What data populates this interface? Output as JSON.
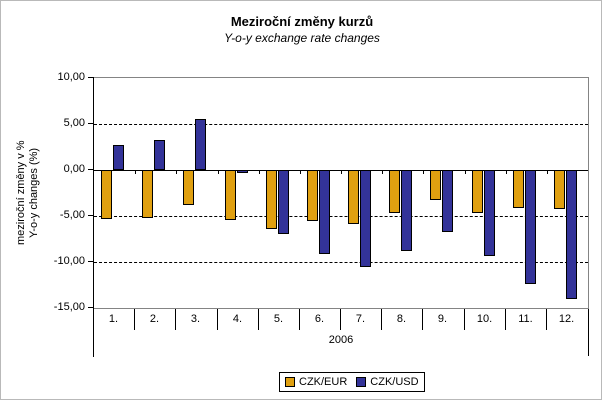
{
  "chart_data": {
    "type": "bar",
    "title": "Meziroční změny kurzů",
    "subtitle": "Y-o-y exchange rate changes",
    "ylabel_line1": "meziroční změny v %",
    "ylabel_line2": "Y-o-y changes (%)",
    "year_label": "2006",
    "categories": [
      "1.",
      "2.",
      "3.",
      "4.",
      "5.",
      "6.",
      "7.",
      "8.",
      "9.",
      "10.",
      "11.",
      "12."
    ],
    "series": [
      {
        "name": "CZK/EUR",
        "color": "#E0A010",
        "values": [
          -5.3,
          -5.2,
          -3.8,
          -5.4,
          -6.4,
          -5.5,
          -5.9,
          -4.7,
          -3.3,
          -4.7,
          -4.1,
          -4.2
        ]
      },
      {
        "name": "CZK/USD",
        "color": "#333399",
        "values": [
          2.7,
          3.3,
          5.5,
          -0.3,
          -7.0,
          -9.1,
          -10.5,
          -8.8,
          -6.7,
          -9.3,
          -12.4,
          -14.0
        ]
      }
    ],
    "ylim": [
      -15,
      10
    ],
    "ytick_step": 5,
    "ytick_labels": [
      "10,00",
      "5,00",
      "0,00",
      "-5,00",
      "-10,00",
      "-15,00"
    ],
    "ytick_values": [
      10,
      5,
      0,
      -5,
      -10,
      -15
    ],
    "grid": "horizontal-dashed",
    "legend_position": "bottom-center",
    "plot_border_color": "#848484",
    "axis_color": "#000000"
  }
}
